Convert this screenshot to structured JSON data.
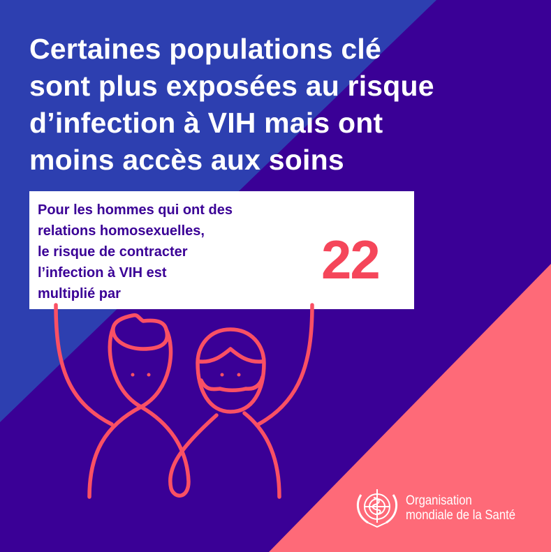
{
  "title_lines": [
    "Certaines populations clé",
    "sont plus exposées au risque",
    "d’infection à VIH mais ont",
    "moins accès aux soins"
  ],
  "card": {
    "lines": [
      "Pour les hommes qui ont des",
      "relations homosexuelles,",
      "le risque de contracter",
      "l’infection à VIH est",
      "multiplié par"
    ],
    "number": "22"
  },
  "logo": {
    "line1": "Organisation",
    "line2": "mondiale de la Santé",
    "icon": "who-emblem-icon"
  },
  "colors": {
    "blue": "#2d3fb0",
    "purple": "#3a0096",
    "pink": "#fe6a78",
    "accent": "#f5465a",
    "line": "#fa5064"
  }
}
